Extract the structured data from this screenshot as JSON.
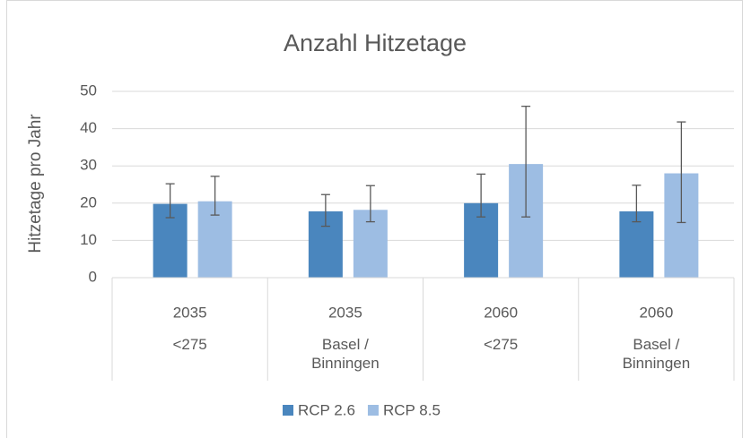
{
  "chart_data": {
    "type": "bar",
    "title": "Anzahl Hitzetage",
    "y_label": "Hitzetage pro Jahr",
    "categories": [
      "2035",
      "2035",
      "2060",
      "2060"
    ],
    "subcategories": [
      "<275",
      "Basel / Binningen",
      "<275",
      "Basel / Binningen"
    ],
    "series": [
      {
        "name": "RCP 2.6",
        "color": "#4a86be",
        "values": [
          19.8,
          17.8,
          20,
          17.8
        ],
        "err_high": [
          25.2,
          22.3,
          27.8,
          24.8
        ],
        "err_low": [
          16.1,
          13.8,
          16.3,
          15
        ]
      },
      {
        "name": "RCP 8.5",
        "color": "#9dbde3",
        "values": [
          20.5,
          18.2,
          30.5,
          28
        ],
        "err_high": [
          27.2,
          24.7,
          46,
          41.8
        ],
        "err_low": [
          16.8,
          15,
          16.3,
          14.8
        ]
      }
    ],
    "ylim": [
      0,
      50
    ],
    "yticks": [
      0,
      10,
      20,
      30,
      40,
      50
    ],
    "grid": true,
    "legend": "bottom"
  }
}
